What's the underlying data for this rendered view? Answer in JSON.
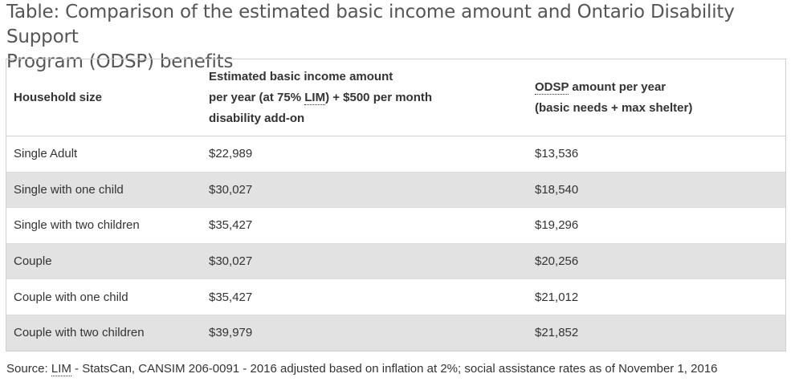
{
  "caption": {
    "line1": "Table: Comparison of the estimated basic income amount and Ontario Disability Support",
    "line2": "Program (ODSP) benefits"
  },
  "table": {
    "headers": {
      "household": "Household size",
      "basic_income": {
        "line1": "Estimated basic income amount",
        "line2_pre": "per year (at 75% ",
        "line2_abbr": "LIM",
        "line2_post": ") + $500 per month",
        "line3": "disability add-on"
      },
      "odsp": {
        "abbr": "ODSP",
        "line1_post": " amount per year",
        "line2": "(basic needs + max shelter)"
      }
    },
    "rows": [
      {
        "household": "Single Adult",
        "basic_income": "$22,989",
        "odsp": "$13,536"
      },
      {
        "household": "Single with one child",
        "basic_income": "$30,027",
        "odsp": "$18,540"
      },
      {
        "household": "Single with two children",
        "basic_income": "$35,427",
        "odsp": "$19,296"
      },
      {
        "household": "Couple",
        "basic_income": "$30,027",
        "odsp": "$20,256"
      },
      {
        "household": "Couple with one child",
        "basic_income": "$35,427",
        "odsp": "$21,012"
      },
      {
        "household": "Couple with two children",
        "basic_income": "$39,979",
        "odsp": "$21,852"
      }
    ]
  },
  "source": {
    "prefix": "Source: ",
    "abbr": "LIM",
    "text": " - StatsCan, CANSIM 206-0091 - 2016 adjusted based on inflation at 2%; social assistance rates as of November 1, 2016"
  },
  "colors": {
    "shaded_row": "#e2e2e2",
    "border": "#cfcfcf",
    "caption_text": "#555555"
  }
}
